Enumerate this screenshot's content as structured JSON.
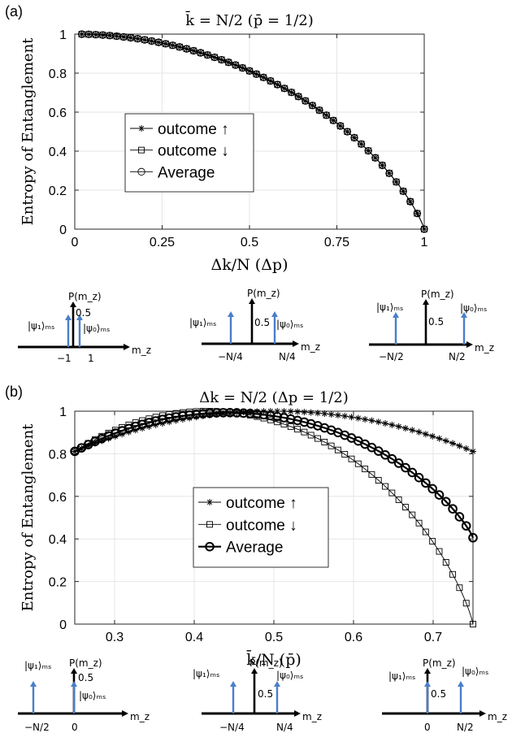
{
  "panels": [
    {
      "letter": "(a)"
    },
    {
      "letter": "(b)"
    }
  ],
  "chart_data": [
    {
      "type": "line",
      "title": "k̄ = N/2 (p̄ = 1/2)",
      "xlabel": "Δk/N (Δp)",
      "ylabel": "Entropy of Entanglement",
      "xlim": [
        0,
        1
      ],
      "ylim": [
        0,
        1
      ],
      "xticks": [
        0,
        0.25,
        0.5,
        0.75,
        1
      ],
      "xtick_labels": [
        "0",
        "0.25",
        "0.5",
        "0.75",
        "1"
      ],
      "yticks": [
        0,
        0.2,
        0.4,
        0.6,
        0.8,
        1
      ],
      "ytick_labels": [
        "0",
        "0.2",
        "0.4",
        "0.6",
        "0.8",
        "1"
      ],
      "grid": true,
      "legend_position": "center-left",
      "series": [
        {
          "name": "outcome ↑",
          "marker": "star",
          "curve": "binary_entropy_a",
          "bold": false
        },
        {
          "name": "outcome ↓",
          "marker": "square",
          "curve": "binary_entropy_a",
          "bold": false
        },
        {
          "name": "Average",
          "marker": "circle",
          "curve": "binary_entropy_a",
          "bold": false
        }
      ]
    },
    {
      "type": "line",
      "title": "Δk = N/2 (Δp = 1/2)",
      "xlabel": "k̄/N (p̄)",
      "ylabel": "Entropy of Entanglement",
      "xlim": [
        0.25,
        0.75
      ],
      "ylim": [
        0,
        1
      ],
      "xticks": [
        0.3,
        0.4,
        0.5,
        0.6,
        0.7
      ],
      "xtick_labels": [
        "0.3",
        "0.4",
        "0.5",
        "0.6",
        "0.7"
      ],
      "yticks": [
        0,
        0.2,
        0.4,
        0.6,
        0.8,
        1
      ],
      "ytick_labels": [
        "0",
        "0.2",
        "0.4",
        "0.6",
        "0.8",
        "1"
      ],
      "grid": true,
      "legend_position": "center",
      "series": [
        {
          "name": "outcome ↑",
          "marker": "star",
          "curve": "up_b",
          "bold": false
        },
        {
          "name": "outcome ↓",
          "marker": "square",
          "curve": "down_b",
          "bold": false
        },
        {
          "name": "Average",
          "marker": "circle",
          "curve": "avg_b",
          "bold": true
        }
      ]
    }
  ],
  "insets": [
    {
      "ylabel": "P(m_z)",
      "tick": "0.5",
      "axis": "m_z",
      "left_ket": "|ψ₁⟩ₘₛ",
      "right_ket": "|ψ₀⟩ₘₛ",
      "left_pos": "−1",
      "right_pos": "1"
    },
    {
      "ylabel": "P(m_z)",
      "tick": "0.5",
      "axis": "m_z",
      "left_ket": "|ψ₁⟩ₘₛ",
      "right_ket": "|ψ₀⟩ₘₛ",
      "left_pos": "−N/4",
      "right_pos": "N/4"
    },
    {
      "ylabel": "P(m_z)",
      "tick": "0.5",
      "axis": "m_z",
      "left_ket": "|ψ₁⟩ₘₛ",
      "right_ket": "|ψ₀⟩ₘₛ",
      "left_pos": "−N/2",
      "right_pos": "N/2"
    },
    {
      "ylabel": "P(m_z)",
      "tick": "0.5",
      "axis": "m_z",
      "left_ket": "|ψ₁⟩ₘₛ",
      "right_ket": "|ψ₀⟩ₘₛ",
      "left_pos": "−N/2",
      "right_pos": "0"
    },
    {
      "ylabel": "P(m_z)",
      "tick": "0.5",
      "axis": "m_z",
      "left_ket": "|ψ₁⟩ₘₛ",
      "right_ket": "|ψ₀⟩ₘₛ",
      "left_pos": "−N/4",
      "right_pos": "N/4"
    },
    {
      "ylabel": "P(m_z)",
      "tick": "0.5",
      "axis": "m_z",
      "left_ket": "|ψ₁⟩ₘₛ",
      "right_ket": "|ψ₀⟩ₘₛ",
      "left_pos": "0",
      "right_pos": "N/2"
    }
  ],
  "colors": {
    "arrow_blue": "#4a7ec9",
    "axis": "#262626",
    "grid": "#e6e6e6",
    "line": "#000000"
  }
}
